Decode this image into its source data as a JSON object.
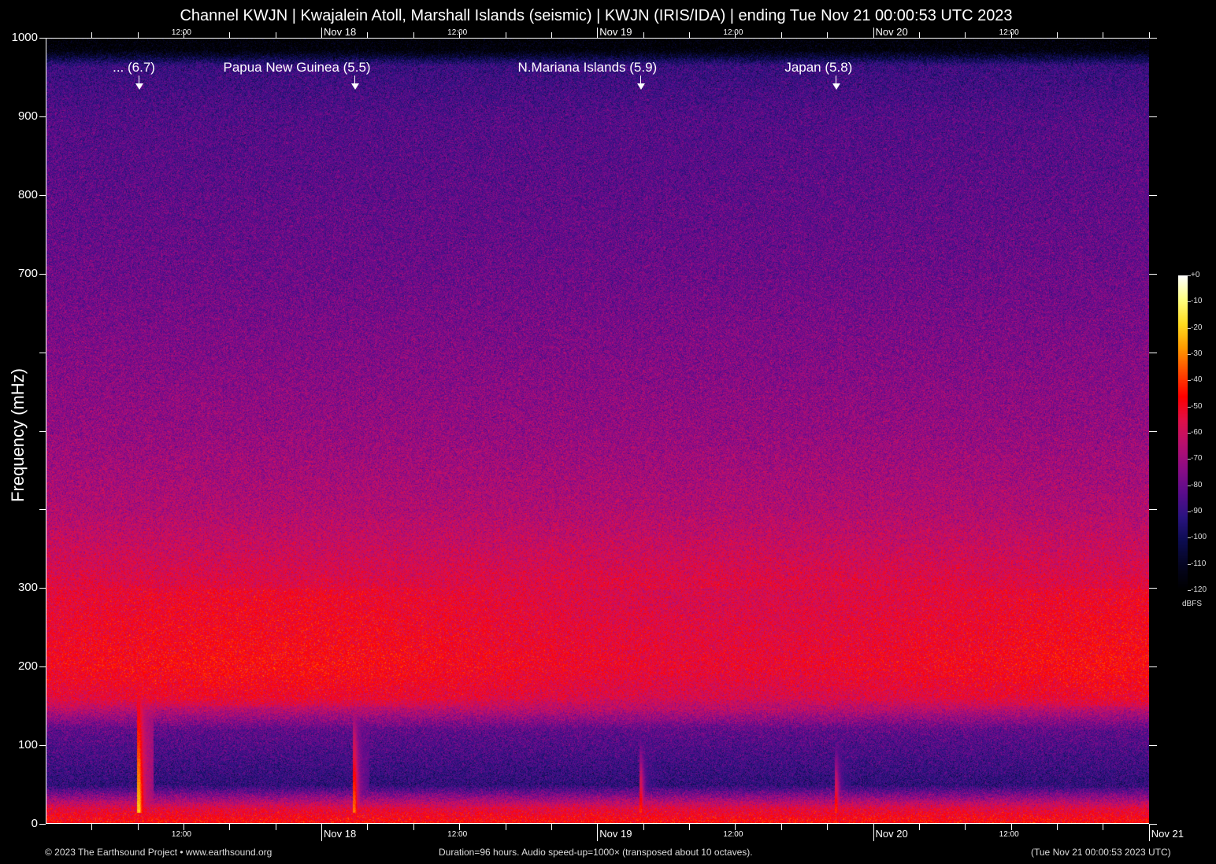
{
  "chart_data": {
    "type": "heatmap",
    "title": "Channel KWJN | Kwajalein Atoll, Marshall Islands (seismic) | KWJN (IRIS/IDA) | ending Tue Nov 21 00:00:53 UTC 2023",
    "ylabel": "Frequency (mHz)",
    "ylim": [
      0,
      1000
    ],
    "y_ticks": [
      0,
      100,
      200,
      300,
      400,
      500,
      600,
      700,
      800,
      900,
      1000
    ],
    "y_tick_labels": [
      "0",
      "100",
      "200",
      "300",
      "",
      "",
      "",
      "700",
      "800",
      "900",
      "1000"
    ],
    "x_axis": {
      "duration_hours": 96,
      "end": "2023-11-21T00:00:53Z",
      "minor_tick_hours": 4,
      "ticks_top": [
        {
          "label": "12:00",
          "time": "2023-11-17T12:00:00Z"
        },
        {
          "label": "Nov 18",
          "time": "2023-11-18T00:00:00Z",
          "day": true
        },
        {
          "label": "12:00",
          "time": "2023-11-18T12:00:00Z"
        },
        {
          "label": "Nov 19",
          "time": "2023-11-19T00:00:00Z",
          "day": true
        },
        {
          "label": "12:00",
          "time": "2023-11-19T12:00:00Z"
        },
        {
          "label": "Nov 20",
          "time": "2023-11-20T00:00:00Z",
          "day": true
        },
        {
          "label": "12:00",
          "time": "2023-11-20T12:00:00Z"
        }
      ],
      "ticks_bottom": [
        {
          "label": "12:00",
          "time": "2023-11-17T12:00:00Z"
        },
        {
          "label": "Nov 18",
          "time": "2023-11-18T00:00:00Z",
          "day": true
        },
        {
          "label": "12:00",
          "time": "2023-11-18T12:00:00Z"
        },
        {
          "label": "Nov 19",
          "time": "2023-11-19T00:00:00Z",
          "day": true
        },
        {
          "label": "12:00",
          "time": "2023-11-19T12:00:00Z"
        },
        {
          "label": "Nov 20",
          "time": "2023-11-20T00:00:00Z",
          "day": true
        },
        {
          "label": "12:00",
          "time": "2023-11-20T12:00:00Z"
        },
        {
          "label": "Nov 21",
          "time": "2023-11-21T00:00:00Z",
          "day": true
        }
      ]
    },
    "background_profile_dbfs": [
      {
        "freq_mhz": 0,
        "db": -45
      },
      {
        "freq_mhz": 20,
        "db": -55
      },
      {
        "freq_mhz": 50,
        "db": -92
      },
      {
        "freq_mhz": 80,
        "db": -88
      },
      {
        "freq_mhz": 120,
        "db": -82
      },
      {
        "freq_mhz": 160,
        "db": -55
      },
      {
        "freq_mhz": 200,
        "db": -50
      },
      {
        "freq_mhz": 300,
        "db": -55
      },
      {
        "freq_mhz": 400,
        "db": -66
      },
      {
        "freq_mhz": 500,
        "db": -72
      },
      {
        "freq_mhz": 700,
        "db": -80
      },
      {
        "freq_mhz": 900,
        "db": -85
      },
      {
        "freq_mhz": 965,
        "db": -90
      },
      {
        "freq_mhz": 985,
        "db": -118
      },
      {
        "freq_mhz": 1000,
        "db": -120
      }
    ],
    "events": [
      {
        "label": "... (6.7)",
        "time": "2023-11-17T08:10:00Z",
        "peak_db": -30,
        "top_freq_mhz": 240
      },
      {
        "label": "Papua New Guinea (5.5)",
        "time": "2023-11-18T02:55:00Z",
        "peak_db": -45,
        "top_freq_mhz": 180
      },
      {
        "label": "N.Mariana Islands (5.9)",
        "time": "2023-11-19T03:50:00Z",
        "peak_db": -55,
        "top_freq_mhz": 130
      },
      {
        "label": "Japan (5.8)",
        "time": "2023-11-19T20:50:00Z",
        "peak_db": -55,
        "top_freq_mhz": 120
      }
    ],
    "colorbar": {
      "unit": "dBFS",
      "range": [
        -120,
        0
      ],
      "tick_labels": [
        "+0",
        "-10",
        "-20",
        "-30",
        "-40",
        "-50",
        "-60",
        "-70",
        "-80",
        "-90",
        "-100",
        "-110",
        "-120"
      ],
      "colors": [
        "#000000",
        "#050520",
        "#0c0c50",
        "#2a1480",
        "#5a0c8c",
        "#8c0c86",
        "#b81070",
        "#e0104a",
        "#ff0000",
        "#ff4a00",
        "#ff9a00",
        "#ffdc20",
        "#ffff80",
        "#ffffff"
      ]
    },
    "grid": false
  },
  "footer": {
    "copyright": "© 2023 The Earthsound Project • www.earthsound.org",
    "duration": "Duration=96 hours. Audio speed-up=1000× (transposed about 10 octaves).",
    "timestamp": "(Tue Nov 21 00:00:53 2023 UTC)"
  }
}
